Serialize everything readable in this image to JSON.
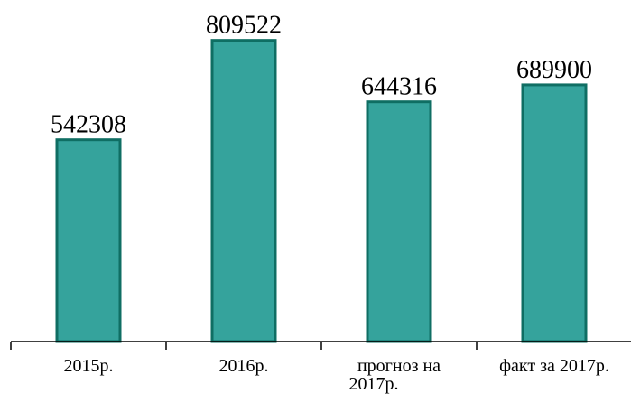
{
  "chart_data": {
    "type": "bar",
    "categories": [
      "2015р.",
      "2016р.",
      "прогноз на 2017р.",
      "факт за 2017р."
    ],
    "category_lines": [
      [
        "2015р."
      ],
      [
        "2016р."
      ],
      [
        "прогноз на",
        "2017р."
      ],
      [
        "факт за 2017р."
      ]
    ],
    "values": [
      542308,
      809522,
      644316,
      689900
    ],
    "data_labels": [
      "542308",
      "809522",
      "644316",
      "689900"
    ],
    "title": "",
    "xlabel": "",
    "ylabel": "",
    "ylim": [
      0,
      850000
    ],
    "grid": false,
    "legend": "none",
    "colors": {
      "bar_fill": "#35a39c",
      "bar_stroke": "#0f6e63",
      "axis": "#000000"
    }
  }
}
